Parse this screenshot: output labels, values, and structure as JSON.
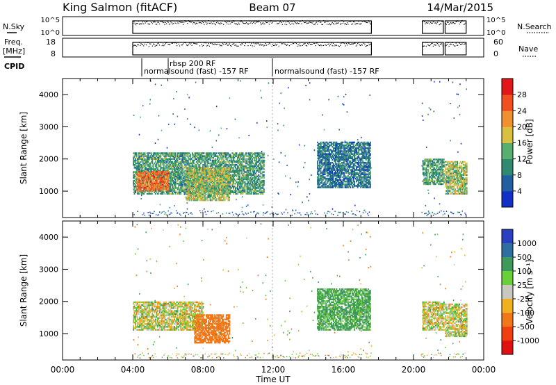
{
  "header": {
    "station": "King Salmon (fitACF)",
    "beam": "Beam 07",
    "date": "14/Mar/2015"
  },
  "top_panels": {
    "nsky_label": "N.Sky",
    "nsearch_label": "N.Search",
    "freq_label": "Freq.",
    "freq_unit": "[MHz]",
    "nave_label": "Nave",
    "cpid_label": "CPID",
    "nsky_ticks": [
      "10^5",
      "10^0"
    ],
    "nsearch_ticks": [
      "10^5",
      "10^0"
    ],
    "freq_ticks": [
      "18",
      "8"
    ],
    "nave_ticks": [
      "60",
      "0"
    ],
    "cpid_labels": [
      "rbsp 200 RF",
      "normalsound (fast) -157 RF",
      "normalsound (fast) -157 RF"
    ]
  },
  "axes": {
    "ylabel": "Slant Range [km]",
    "xlabel": "Time UT",
    "x_ticks": [
      "00:00",
      "04:00",
      "08:00",
      "12:00",
      "16:00",
      "20:00",
      "00:00"
    ],
    "y_ticks": [
      "1000",
      "2000",
      "3000",
      "4000"
    ]
  },
  "power_scale": {
    "label": "Power [dB]",
    "ticks": [
      "4",
      "8",
      "12",
      "16",
      "20",
      "24",
      "28"
    ],
    "colors": [
      "#1030c8",
      "#2060a0",
      "#2e8a70",
      "#58b070",
      "#d8c040",
      "#f09030",
      "#f05020",
      "#e01818"
    ]
  },
  "velocity_scale": {
    "label": "Velocity [m s⁻¹]",
    "ticks": [
      "1000",
      "500",
      "100",
      "25",
      "-25",
      "-100",
      "-500",
      "-1000"
    ],
    "colors": [
      "#2a40c0",
      "#2e6ea0",
      "#3e9a5a",
      "#6ad03a",
      "#c8c8c0",
      "#f0b020",
      "#f07818",
      "#f04010",
      "#e01010"
    ]
  },
  "chart_data": [
    {
      "type": "heatmap",
      "title": "Power [dB]",
      "xlabel": "Time UT",
      "ylabel": "Slant Range [km]",
      "xlim": [
        "00:00",
        "24:00"
      ],
      "ylim": [
        180,
        4500
      ],
      "regions": [
        {
          "t": [
            4.0,
            11.5
          ],
          "r": [
            900,
            2200
          ],
          "level": 12
        },
        {
          "t": [
            4.2,
            6.0
          ],
          "r": [
            1000,
            1600
          ],
          "level": 24
        },
        {
          "t": [
            7.0,
            9.5
          ],
          "r": [
            700,
            1700
          ],
          "level": 16
        },
        {
          "t": [
            14.5,
            17.5
          ],
          "r": [
            1100,
            2500
          ],
          "level": 8
        },
        {
          "t": [
            20.5,
            21.7
          ],
          "r": [
            1200,
            2000
          ],
          "level": 12
        },
        {
          "t": [
            21.8,
            23.0
          ],
          "r": [
            900,
            1900
          ],
          "level": 16
        }
      ]
    },
    {
      "type": "heatmap",
      "title": "Velocity",
      "xlabel": "Time UT",
      "ylabel": "Slant Range [km]",
      "xlim": [
        "00:00",
        "24:00"
      ],
      "ylim": [
        180,
        4500
      ],
      "regions": [
        {
          "t": [
            4.0,
            8.0
          ],
          "r": [
            1100,
            2000
          ],
          "value": 0
        },
        {
          "t": [
            7.5,
            9.5
          ],
          "r": [
            700,
            1600
          ],
          "value": -300
        },
        {
          "t": [
            14.5,
            17.5
          ],
          "r": [
            1100,
            2400
          ],
          "value": 150
        },
        {
          "t": [
            20.5,
            21.7
          ],
          "r": [
            1100,
            2000
          ],
          "value": 0
        },
        {
          "t": [
            21.8,
            23.0
          ],
          "r": [
            900,
            1900
          ],
          "value": 0
        }
      ]
    }
  ]
}
